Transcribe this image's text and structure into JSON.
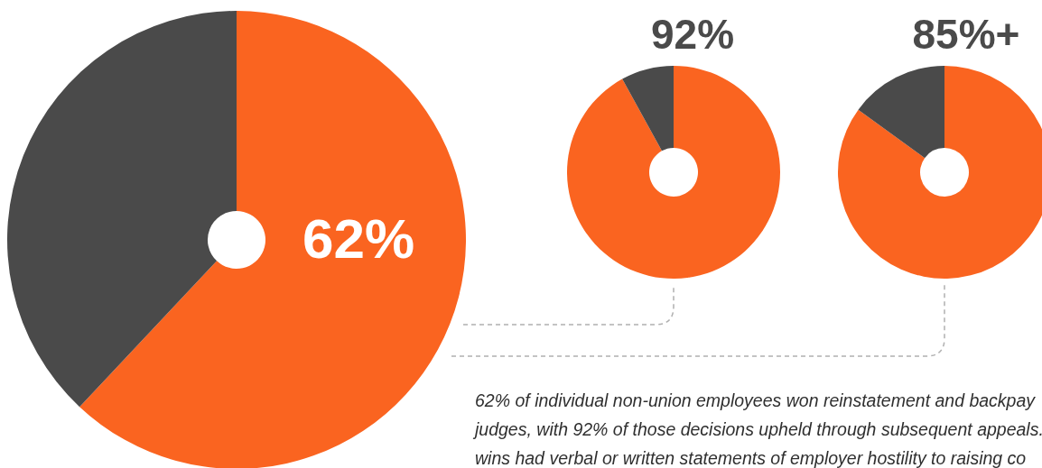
{
  "chart_data": [
    {
      "type": "donut",
      "categories": [
        null,
        null
      ],
      "values": [
        62,
        38
      ],
      "colors": [
        "#fa6420",
        "#4a4a4a"
      ],
      "value_labels": [
        "62%",
        null
      ],
      "annotations": [
        "62% of individual non-union employees won reinstatement and backpay",
        "judges, with 92% of those decisions upheld through subsequent appeals.",
        "wins had verbal or written statements of employer hostility to raising co"
      ]
    },
    {
      "type": "donut",
      "title": "92%",
      "categories": [
        null,
        null
      ],
      "values": [
        92,
        8
      ],
      "colors": [
        "#fa6420",
        "#4a4a4a"
      ]
    },
    {
      "type": "donut",
      "title": "85%+",
      "categories": [
        null,
        null
      ],
      "values": [
        85,
        15
      ],
      "colors": [
        "#fa6420",
        "#4a4a4a"
      ]
    }
  ]
}
